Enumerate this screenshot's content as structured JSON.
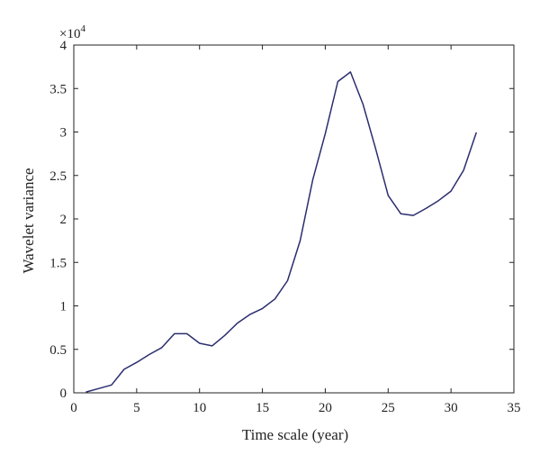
{
  "chart_data": {
    "type": "line",
    "title": "",
    "xlabel": "Time scale (year)",
    "ylabel": "Wavelet variance",
    "y_multiplier": {
      "base": "×10",
      "exponent": "4"
    },
    "xlim": [
      0,
      35
    ],
    "ylim": [
      0,
      4
    ],
    "x_ticks": [
      0,
      5,
      10,
      15,
      20,
      25,
      30,
      35
    ],
    "x_tick_labels": [
      "0",
      "5",
      "10",
      "15",
      "20",
      "25",
      "30",
      "35"
    ],
    "y_ticks": [
      0,
      0.5,
      1,
      1.5,
      2,
      2.5,
      3,
      3.5,
      4
    ],
    "y_tick_labels": [
      "0",
      "0.5",
      "1",
      "1.5",
      "2",
      "2.5",
      "3",
      "3.5",
      "4"
    ],
    "grid": false,
    "line_color": "#2b2d6e",
    "series": [
      {
        "x": [
          1,
          2,
          3,
          4,
          5,
          6,
          7,
          8,
          9,
          10,
          11,
          12,
          13,
          14,
          15,
          16,
          17,
          18,
          19,
          20,
          21,
          22,
          23,
          24,
          25,
          26,
          27,
          28,
          29,
          30,
          31,
          32
        ],
        "values": [
          0.01,
          0.05,
          0.09,
          0.27,
          0.35,
          0.44,
          0.52,
          0.68,
          0.68,
          0.57,
          0.54,
          0.66,
          0.8,
          0.9,
          0.97,
          1.08,
          1.29,
          1.75,
          2.45,
          2.98,
          3.58,
          3.69,
          3.32,
          2.81,
          2.27,
          2.06,
          2.04,
          2.12,
          2.21,
          2.32,
          2.56,
          2.99
        ]
      }
    ]
  }
}
